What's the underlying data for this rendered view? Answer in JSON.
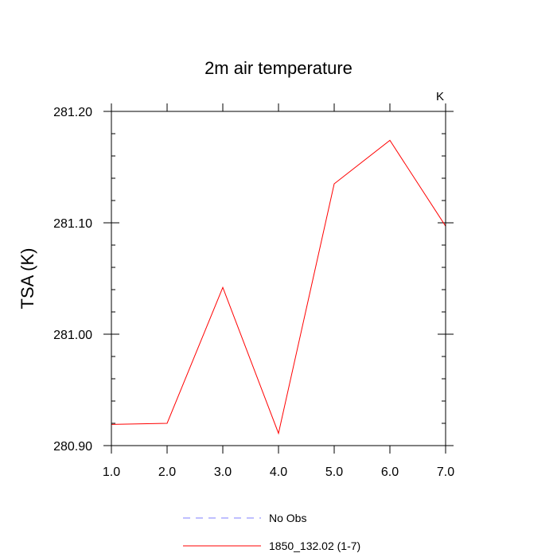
{
  "chart_data": {
    "type": "line",
    "title": "2m air temperature",
    "xlabel": "",
    "ylabel": "TSA  (K)",
    "units_label": "K",
    "xlim": [
      1.0,
      7.0
    ],
    "ylim": [
      280.9,
      281.2
    ],
    "x_ticks": [
      1.0,
      2.0,
      3.0,
      4.0,
      5.0,
      6.0,
      7.0
    ],
    "x_tick_labels": [
      "1.0",
      "2.0",
      "3.0",
      "4.0",
      "5.0",
      "6.0",
      "7.0"
    ],
    "y_ticks": [
      280.9,
      281.0,
      281.1,
      281.2
    ],
    "y_tick_labels": [
      "280.90",
      "281.00",
      "281.10",
      "281.20"
    ],
    "y_minor_step": 0.02,
    "grid": false,
    "legend_position": "bottom-center",
    "series": [
      {
        "name": "No Obs",
        "style": "dashed",
        "color": "#7f7fff",
        "values": []
      },
      {
        "name": "1850_132.02 (1-7)",
        "style": "solid",
        "color": "#ff0000",
        "x": [
          1.0,
          2.0,
          3.0,
          4.0,
          5.0,
          6.0,
          7.0
        ],
        "values": [
          280.919,
          280.92,
          281.042,
          280.911,
          281.135,
          281.174,
          281.097
        ]
      }
    ]
  }
}
